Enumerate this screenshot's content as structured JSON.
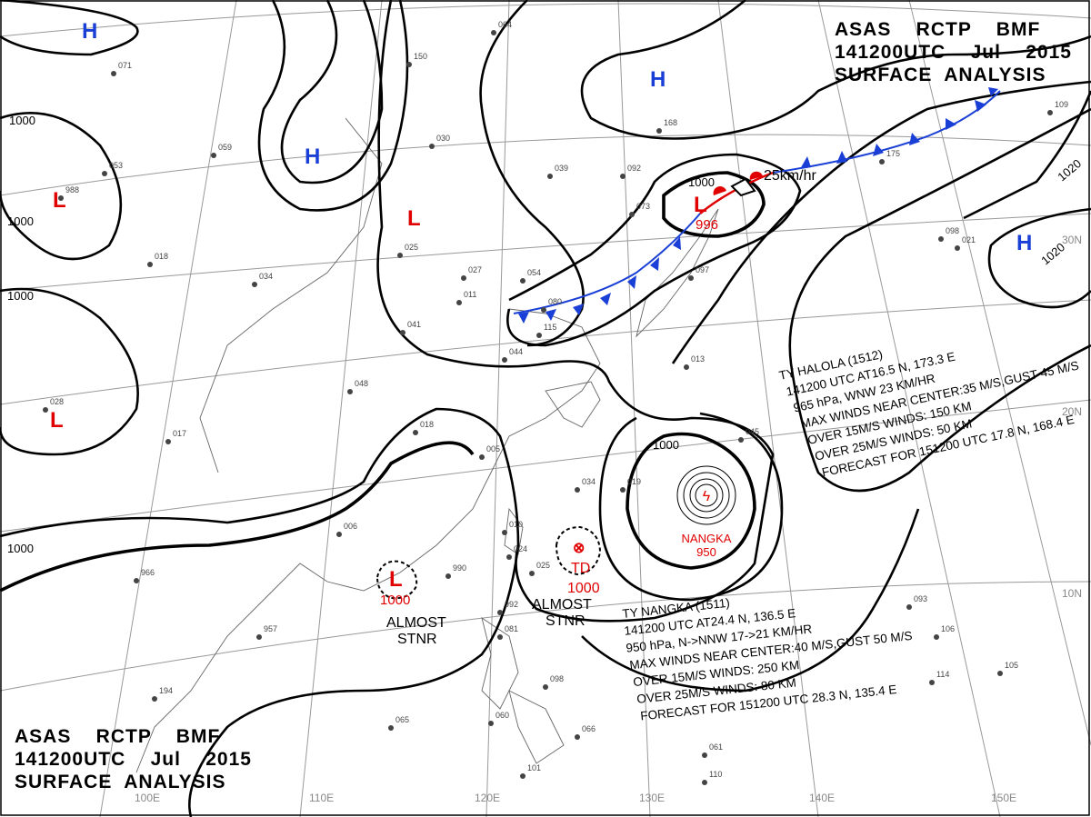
{
  "header": {
    "line1": "ASAS    RCTP    BMF",
    "line2": "141200UTC    Jul    2015",
    "line3": "SURFACE  ANALYSIS"
  },
  "footer": {
    "line1": "ASAS    RCTP    BMF",
    "line2": "141200UTC    Jul    2015",
    "line3": "SURFACE  ANALYSIS"
  },
  "graticule": {
    "longitudes": [
      "100E",
      "110E",
      "120E",
      "130E",
      "140E",
      "150E"
    ],
    "latitudes": [
      "30N",
      "20N",
      "10N"
    ]
  },
  "isobar_labels": [
    "1000",
    "1000",
    "1000",
    "1000",
    "1000",
    "1000",
    "1020",
    "1020"
  ],
  "pressure_centers": [
    {
      "type": "H",
      "color": "#1a3fd6"
    },
    {
      "type": "H",
      "color": "#1a3fd6"
    },
    {
      "type": "H",
      "color": "#1a3fd6"
    },
    {
      "type": "H",
      "color": "#1a3fd6"
    },
    {
      "type": "L",
      "color": "#e00000"
    },
    {
      "type": "L",
      "color": "#e00000"
    },
    {
      "type": "L",
      "color": "#e00000"
    },
    {
      "type": "L",
      "color": "#e00000",
      "value": "996"
    },
    {
      "type": "L",
      "color": "#e00000",
      "value": "1000"
    },
    {
      "type": "TD",
      "color": "#e00000",
      "value": "1000"
    }
  ],
  "low_motion": "25km/hr",
  "td_label": "TD",
  "almost_stnr": [
    "ALMOST",
    "STNR"
  ],
  "typhoon_nangka_marker": {
    "name": "NANGKA",
    "pressure": "950"
  },
  "halola": {
    "lines": [
      "TY  HALOLA  (1512)",
      "141200 UTC  AT16.5 N, 173.3 E",
      "965 hPa, WNW  23 KM/HR",
      "MAX WINDS NEAR CENTER:35 M/S,GUST 45 M/S",
      "OVER 15M/S WINDS: 150 KM",
      "OVER 25M/S WINDS: 50 KM",
      "FORECAST FOR 151200 UTC 17.8 N, 168.4 E"
    ]
  },
  "nangka": {
    "lines": [
      "TY  NANGKA  (1511)",
      "141200 UTC  AT24.4 N, 136.5 E",
      "950 hPa, N->NNW  17->21 KM/HR",
      "MAX WINDS NEAR CENTER:40 M/S,GUST 50 M/S",
      "OVER 15M/S WINDS: 250 KM",
      "OVER 25M/S WINDS: 80 KM",
      "FORECAST FOR 151200 UTC 28.3 N, 135.4 E"
    ]
  },
  "stations": [
    "064",
    "150",
    "030",
    "059",
    "071",
    "053",
    "988",
    "018",
    "034",
    "025",
    "011",
    "027",
    "054",
    "039",
    "092",
    "073",
    "097",
    "080",
    "115",
    "041",
    "044",
    "048",
    "018",
    "005",
    "017",
    "028",
    "006",
    "966",
    "957",
    "990",
    "010",
    "024",
    "025",
    "034",
    "019",
    "045",
    "013",
    "021",
    "992",
    "081",
    "098",
    "194",
    "065",
    "060",
    "066",
    "061",
    "101",
    "110",
    "093",
    "106",
    "105",
    "114",
    "109",
    "098",
    "175",
    "168"
  ],
  "colors": {
    "high": "#1a3fd6",
    "low": "#e00000",
    "isobar": "#000000",
    "graticule": "#999999"
  }
}
